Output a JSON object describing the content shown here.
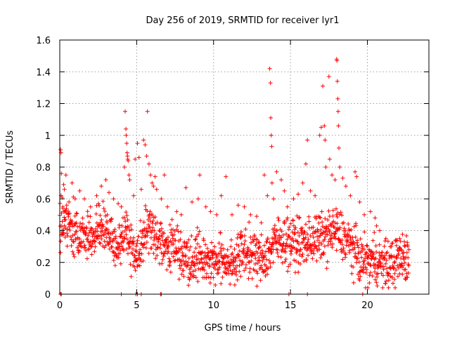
{
  "chart_data": {
    "type": "scatter",
    "title": "Day 256 of 2019, SRMTID for receiver lyr1",
    "xlabel": "GPS time / hours",
    "ylabel": "SRMTID / TECUs",
    "xlim": [
      0,
      24
    ],
    "ylim": [
      0,
      1.6
    ],
    "xticks": [
      0,
      5,
      10,
      15,
      20
    ],
    "yticks": [
      0,
      0.2,
      0.4,
      0.6,
      0.8,
      1,
      1.2,
      1.4,
      1.6
    ],
    "xtick_labels": [
      "0",
      "5",
      "10",
      "15",
      "20"
    ],
    "ytick_labels": [
      "0",
      "0.2",
      "0.4",
      "0.6",
      "0.8",
      "1",
      "1.2",
      "1.4",
      "1.6"
    ],
    "grid": true,
    "marker": "+",
    "color": "#ff0000",
    "profile": [
      [
        0.0,
        0.42
      ],
      [
        0.5,
        0.45
      ],
      [
        1.0,
        0.4
      ],
      [
        1.5,
        0.38
      ],
      [
        2.0,
        0.34
      ],
      [
        2.5,
        0.4
      ],
      [
        3.0,
        0.42
      ],
      [
        3.5,
        0.3
      ],
      [
        4.0,
        0.3
      ],
      [
        4.3,
        0.45
      ],
      [
        4.6,
        0.3
      ],
      [
        5.0,
        0.25
      ],
      [
        5.5,
        0.4
      ],
      [
        6.0,
        0.42
      ],
      [
        6.5,
        0.32
      ],
      [
        7.0,
        0.3
      ],
      [
        7.5,
        0.3
      ],
      [
        8.0,
        0.25
      ],
      [
        8.5,
        0.22
      ],
      [
        9.0,
        0.25
      ],
      [
        9.5,
        0.22
      ],
      [
        10.0,
        0.2
      ],
      [
        10.5,
        0.22
      ],
      [
        11.0,
        0.2
      ],
      [
        11.5,
        0.22
      ],
      [
        12.0,
        0.28
      ],
      [
        12.5,
        0.25
      ],
      [
        13.0,
        0.22
      ],
      [
        13.5,
        0.25
      ],
      [
        14.0,
        0.33
      ],
      [
        14.5,
        0.35
      ],
      [
        15.0,
        0.33
      ],
      [
        15.5,
        0.32
      ],
      [
        16.0,
        0.32
      ],
      [
        16.5,
        0.35
      ],
      [
        17.0,
        0.35
      ],
      [
        17.5,
        0.38
      ],
      [
        18.0,
        0.4
      ],
      [
        18.5,
        0.35
      ],
      [
        19.0,
        0.3
      ],
      [
        19.5,
        0.22
      ],
      [
        20.0,
        0.2
      ],
      [
        20.5,
        0.22
      ],
      [
        21.0,
        0.18
      ],
      [
        21.5,
        0.18
      ],
      [
        22.0,
        0.22
      ],
      [
        22.5,
        0.22
      ],
      [
        22.7,
        0.2
      ]
    ],
    "spread": 0.11,
    "points": [
      [
        0.05,
        0.91
      ],
      [
        0.08,
        0.89
      ],
      [
        0.1,
        0.76
      ],
      [
        0.15,
        0.61
      ],
      [
        0.2,
        0.55
      ],
      [
        0.25,
        0.69
      ],
      [
        0.3,
        0.66
      ],
      [
        0.4,
        0.75
      ],
      [
        0.6,
        0.58
      ],
      [
        0.8,
        0.7
      ],
      [
        1.0,
        0.6
      ],
      [
        1.3,
        0.65
      ],
      [
        1.6,
        0.6
      ],
      [
        2.0,
        0.55
      ],
      [
        2.4,
        0.62
      ],
      [
        2.7,
        0.68
      ],
      [
        3.0,
        0.72
      ],
      [
        3.2,
        0.64
      ],
      [
        3.5,
        0.6
      ],
      [
        3.8,
        0.57
      ],
      [
        4.0,
        0.55
      ],
      [
        4.2,
        0.8
      ],
      [
        4.25,
        1.15
      ],
      [
        4.3,
        1.04
      ],
      [
        4.32,
        1.0
      ],
      [
        4.35,
        0.95
      ],
      [
        4.38,
        0.89
      ],
      [
        4.4,
        0.87
      ],
      [
        4.42,
        0.85
      ],
      [
        4.45,
        0.84
      ],
      [
        4.5,
        0.75
      ],
      [
        4.55,
        0.72
      ],
      [
        4.8,
        0.62
      ],
      [
        4.9,
        0.85
      ],
      [
        5.05,
        0.95
      ],
      [
        5.15,
        0.86
      ],
      [
        5.3,
        0.66
      ],
      [
        5.45,
        0.97
      ],
      [
        5.55,
        0.94
      ],
      [
        5.65,
        0.87
      ],
      [
        5.7,
        1.15
      ],
      [
        5.8,
        0.82
      ],
      [
        5.9,
        0.75
      ],
      [
        6.0,
        0.7
      ],
      [
        6.1,
        0.68
      ],
      [
        6.2,
        0.74
      ],
      [
        6.3,
        0.66
      ],
      [
        6.6,
        0.6
      ],
      [
        6.8,
        0.75
      ],
      [
        7.0,
        0.55
      ],
      [
        7.3,
        0.47
      ],
      [
        7.6,
        0.52
      ],
      [
        7.9,
        0.5
      ],
      [
        8.2,
        0.67
      ],
      [
        8.6,
        0.58
      ],
      [
        9.0,
        0.6
      ],
      [
        9.1,
        0.75
      ],
      [
        9.5,
        0.55
      ],
      [
        9.8,
        0.52
      ],
      [
        10.2,
        0.5
      ],
      [
        10.5,
        0.62
      ],
      [
        10.8,
        0.74
      ],
      [
        11.2,
        0.5
      ],
      [
        11.6,
        0.56
      ],
      [
        12.0,
        0.55
      ],
      [
        12.4,
        0.5
      ],
      [
        12.8,
        0.49
      ],
      [
        13.1,
        0.45
      ],
      [
        13.3,
        0.75
      ],
      [
        13.5,
        0.62
      ],
      [
        13.65,
        1.42
      ],
      [
        13.7,
        1.33
      ],
      [
        13.72,
        1.11
      ],
      [
        13.75,
        1.0
      ],
      [
        13.78,
        0.93
      ],
      [
        13.8,
        0.7
      ],
      [
        13.9,
        0.6
      ],
      [
        14.1,
        0.77
      ],
      [
        14.4,
        0.72
      ],
      [
        14.6,
        0.65
      ],
      [
        14.8,
        0.55
      ],
      [
        15.2,
        0.6
      ],
      [
        15.5,
        0.63
      ],
      [
        15.8,
        0.7
      ],
      [
        16.0,
        0.82
      ],
      [
        16.1,
        0.97
      ],
      [
        16.3,
        0.65
      ],
      [
        16.6,
        0.62
      ],
      [
        16.9,
        1.0
      ],
      [
        17.0,
        1.05
      ],
      [
        17.1,
        1.31
      ],
      [
        17.2,
        1.06
      ],
      [
        17.25,
        0.97
      ],
      [
        17.3,
        0.8
      ],
      [
        17.5,
        1.37
      ],
      [
        17.55,
        0.85
      ],
      [
        17.7,
        0.75
      ],
      [
        17.9,
        0.72
      ],
      [
        18.0,
        1.48
      ],
      [
        18.02,
        1.47
      ],
      [
        18.05,
        1.34
      ],
      [
        18.08,
        1.23
      ],
      [
        18.1,
        1.15
      ],
      [
        18.12,
        1.06
      ],
      [
        18.15,
        0.92
      ],
      [
        18.2,
        0.8
      ],
      [
        18.4,
        0.73
      ],
      [
        18.6,
        0.68
      ],
      [
        18.9,
        0.62
      ],
      [
        19.2,
        0.77
      ],
      [
        19.3,
        0.74
      ],
      [
        19.5,
        0.58
      ],
      [
        19.8,
        0.5
      ],
      [
        20.2,
        0.52
      ],
      [
        20.5,
        0.48
      ],
      [
        20.6,
        0.43
      ],
      [
        20.8,
        0.4
      ],
      [
        21.2,
        0.35
      ],
      [
        21.6,
        0.32
      ],
      [
        21.9,
        0.34
      ],
      [
        22.1,
        0.35
      ],
      [
        22.4,
        0.33
      ],
      [
        22.6,
        0.31
      ],
      [
        22.7,
        0.28
      ],
      [
        0.05,
        0.0
      ],
      [
        0.1,
        0.0
      ],
      [
        4.0,
        0.0
      ],
      [
        4.95,
        0.0
      ],
      [
        5.05,
        0.0
      ],
      [
        5.3,
        0.0
      ],
      [
        6.55,
        0.0
      ],
      [
        6.6,
        0.0
      ],
      [
        14.9,
        0.0
      ],
      [
        16.1,
        0.0
      ],
      [
        19.7,
        0.0
      ]
    ]
  }
}
